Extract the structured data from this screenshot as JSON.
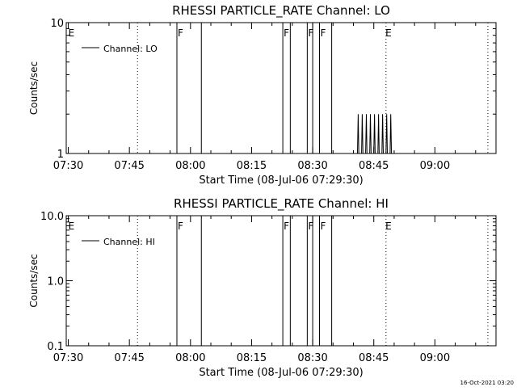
{
  "footer": {
    "timestamp": "16-Oct-2021 03:20"
  },
  "chart_data": [
    {
      "type": "line",
      "title": "RHESSI PARTICLE_RATE Channel: LO",
      "xlabel": "Start Time (08-Jul-06 07:29:30)",
      "ylabel": "Counts/sec",
      "x_axis": "time of day (HH:MM), 08-Jul-06",
      "xlim": [
        "07:29:30",
        "09:15:00"
      ],
      "ylim": [
        1,
        10
      ],
      "yscale": "log",
      "x_ticks": [
        "07:30",
        "07:45",
        "08:00",
        "08:15",
        "08:30",
        "08:45",
        "09:00"
      ],
      "y_ticks": [
        "1",
        "10"
      ],
      "legend": {
        "entries": [
          "Channel: LO"
        ],
        "position": "top-left"
      },
      "grid": false,
      "color": "#000000",
      "gap_lines": [
        "07:47:00",
        "08:48:00",
        "09:13:00"
      ],
      "flags": [
        {
          "label": "E",
          "time": "07:29:50"
        },
        {
          "label": "F",
          "time": "07:56:40"
        },
        {
          "label": "F",
          "time": "08:22:40"
        },
        {
          "label": "F",
          "time": "08:28:40"
        },
        {
          "label": "F",
          "time": "08:31:40"
        },
        {
          "label": "E",
          "time": "08:47:40"
        }
      ],
      "segments": [
        {
          "start": "07:29:30",
          "end": "07:56:40"
        },
        {
          "start": "08:02:40",
          "end": "08:22:40"
        },
        {
          "start": "08:24:30",
          "end": "08:28:40"
        },
        {
          "start": "08:30:00",
          "end": "08:31:40"
        },
        {
          "start": "08:34:40",
          "end": "09:15:00"
        }
      ],
      "series": [
        {
          "name": "Channel: LO",
          "points": [
            [
              "07:29:30",
              1
            ],
            [
              "07:56:40",
              1
            ],
            [
              "08:02:40",
              1
            ],
            [
              "08:22:40",
              1
            ],
            [
              "08:24:30",
              1
            ],
            [
              "08:28:40",
              1
            ],
            [
              "08:30:00",
              1
            ],
            [
              "08:31:40",
              1
            ],
            [
              "08:34:40",
              1
            ],
            [
              "08:41:00",
              1
            ],
            [
              "08:41:10",
              2
            ],
            [
              "08:41:20",
              1
            ],
            [
              "08:42:00",
              1
            ],
            [
              "08:42:10",
              2
            ],
            [
              "08:42:20",
              1
            ],
            [
              "08:43:00",
              1
            ],
            [
              "08:43:10",
              2
            ],
            [
              "08:43:20",
              1
            ],
            [
              "08:44:00",
              1
            ],
            [
              "08:44:10",
              2
            ],
            [
              "08:44:20",
              1
            ],
            [
              "08:45:00",
              1
            ],
            [
              "08:45:10",
              2
            ],
            [
              "08:45:20",
              1
            ],
            [
              "08:46:00",
              1
            ],
            [
              "08:46:10",
              2
            ],
            [
              "08:46:20",
              1
            ],
            [
              "08:47:00",
              1
            ],
            [
              "08:47:10",
              2
            ],
            [
              "08:47:20",
              1
            ],
            [
              "08:48:00",
              1
            ],
            [
              "08:48:10",
              2
            ],
            [
              "08:48:20",
              1
            ],
            [
              "08:49:00",
              1
            ],
            [
              "08:49:10",
              2
            ],
            [
              "08:49:20",
              1
            ],
            [
              "09:15:00",
              1
            ]
          ]
        }
      ]
    },
    {
      "type": "line",
      "title": "RHESSI PARTICLE_RATE Channel: HI",
      "xlabel": "Start Time (08-Jul-06 07:29:30)",
      "ylabel": "Counts/sec",
      "x_axis": "time of day (HH:MM), 08-Jul-06",
      "xlim": [
        "07:29:30",
        "09:15:00"
      ],
      "ylim": [
        0.1,
        10
      ],
      "yscale": "log",
      "x_ticks": [
        "07:30",
        "07:45",
        "08:00",
        "08:15",
        "08:30",
        "08:45",
        "09:00"
      ],
      "y_ticks": [
        "0.1",
        "1.0",
        "10.0"
      ],
      "legend": {
        "entries": [
          "Channel: HI"
        ],
        "position": "top-left"
      },
      "grid": false,
      "color": "#000000",
      "gap_lines": [
        "07:47:00",
        "08:48:00",
        "09:13:00"
      ],
      "flags": [
        {
          "label": "E",
          "time": "07:29:50"
        },
        {
          "label": "F",
          "time": "07:56:40"
        },
        {
          "label": "F",
          "time": "08:22:40"
        },
        {
          "label": "F",
          "time": "08:28:40"
        },
        {
          "label": "F",
          "time": "08:31:40"
        },
        {
          "label": "E",
          "time": "08:47:40"
        }
      ],
      "segments": [
        {
          "start": "07:29:30",
          "end": "07:56:40"
        },
        {
          "start": "08:02:40",
          "end": "08:22:40"
        },
        {
          "start": "08:24:30",
          "end": "08:28:40"
        },
        {
          "start": "08:30:00",
          "end": "08:31:40"
        },
        {
          "start": "08:34:40",
          "end": "09:15:00"
        }
      ],
      "series": [
        {
          "name": "Channel: HI",
          "points": [
            [
              "07:29:30",
              0.1
            ],
            [
              "07:56:40",
              0.1
            ],
            [
              "08:02:40",
              0.1
            ],
            [
              "08:22:40",
              0.1
            ],
            [
              "08:24:30",
              0.1
            ],
            [
              "08:28:40",
              0.1
            ],
            [
              "08:30:00",
              0.1
            ],
            [
              "08:31:40",
              0.1
            ],
            [
              "08:34:40",
              0.1
            ],
            [
              "09:15:00",
              0.1
            ]
          ]
        }
      ]
    }
  ]
}
